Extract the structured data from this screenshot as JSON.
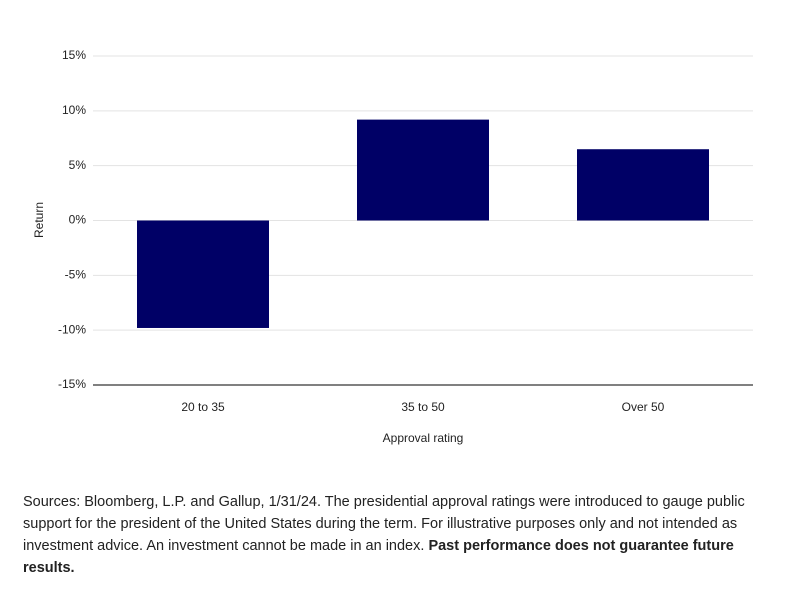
{
  "chart_data": {
    "type": "bar",
    "ylabel": "Return",
    "xlabel": "Approval rating",
    "categories": [
      "20 to 35",
      "35 to 50",
      "Over 50"
    ],
    "values": [
      -9.8,
      9.2,
      6.5
    ],
    "color": "#000066",
    "ylim": [
      -15,
      15
    ],
    "yticks": [
      {
        "value": -15,
        "label": "-15%"
      },
      {
        "value": -10,
        "label": "-10%"
      },
      {
        "value": -5,
        "label": "-5%"
      },
      {
        "value": 0,
        "label": "0%"
      },
      {
        "value": 5,
        "label": "5%"
      },
      {
        "value": 10,
        "label": "10%"
      },
      {
        "value": 15,
        "label": "15%"
      }
    ],
    "grid": true
  },
  "footnote": {
    "text": "Sources: Bloomberg, L.P. and Gallup, 1/31/24. The presidential approval ratings were introduced to gauge public support for the president of the United States during the term. For illustrative purposes only and not intended as investment advice. An investment cannot be made in an index. ",
    "bold": "Past performance does not guarantee future results."
  }
}
